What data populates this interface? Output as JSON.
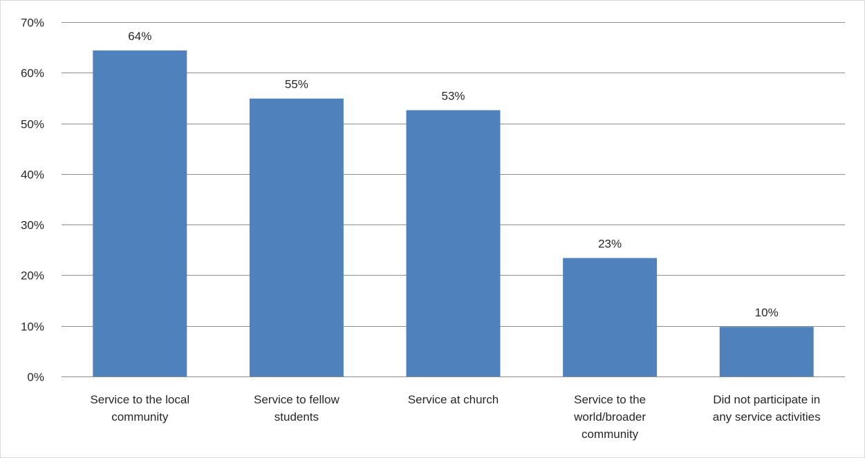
{
  "chart_data": {
    "type": "bar",
    "categories": [
      [
        "Service to the local",
        "community"
      ],
      [
        "Service to fellow",
        "students"
      ],
      [
        "Service at church"
      ],
      [
        "Service to the",
        "world/broader",
        "community"
      ],
      [
        "Did not participate in",
        "any service activities"
      ]
    ],
    "values": [
      64.4,
      54.9,
      52.6,
      23.4,
      9.8
    ],
    "data_labels": [
      "64%",
      "55%",
      "53%",
      "23%",
      "10%"
    ],
    "y_ticks": [
      0,
      10,
      20,
      30,
      40,
      50,
      60,
      70
    ],
    "y_tick_labels": [
      "0%",
      "10%",
      "20%",
      "30%",
      "40%",
      "50%",
      "60%",
      "70%"
    ],
    "ylim": [
      0,
      70
    ],
    "title": "",
    "xlabel": "",
    "ylabel": "",
    "grid": true,
    "legend": "none",
    "bar_color": "#4f81bd"
  }
}
